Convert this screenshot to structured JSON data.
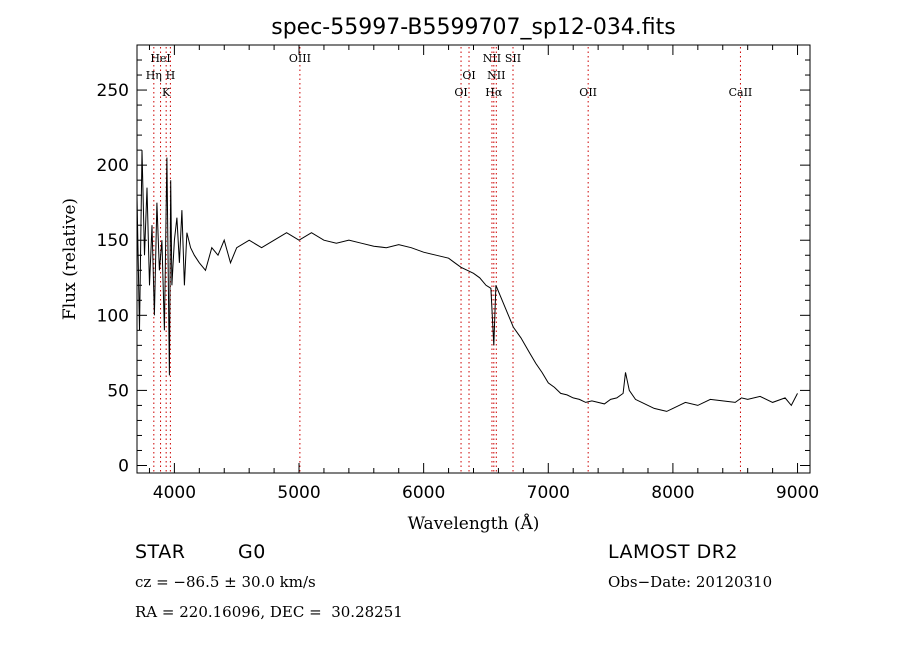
{
  "chart_data": {
    "type": "line",
    "title": "spec-55997-B5599707_sp12-034.fits",
    "xlabel": "Wavelength (Å)",
    "ylabel": "Flux (relative)",
    "xlim": [
      3700,
      9100
    ],
    "ylim": [
      -5,
      280
    ],
    "xticks": [
      4000,
      5000,
      6000,
      7000,
      8000,
      9000
    ],
    "yticks": [
      0,
      50,
      100,
      150,
      200,
      250
    ],
    "grid": false,
    "line_color": "#000000",
    "marker_color": "#cc0000",
    "series": [
      {
        "x": [
          3700,
          3720,
          3740,
          3760,
          3780,
          3800,
          3820,
          3840,
          3860,
          3880,
          3900,
          3920,
          3940,
          3960,
          3970,
          3980,
          4000,
          4020,
          4040,
          4060,
          4080,
          4100,
          4130,
          4160,
          4200,
          4250,
          4300,
          4350,
          4400,
          4450,
          4500,
          4600,
          4700,
          4800,
          4900,
          5000,
          5100,
          5200,
          5300,
          5400,
          5500,
          5600,
          5700,
          5800,
          5900,
          6000,
          6100,
          6200,
          6250,
          6300,
          6350,
          6400,
          6450,
          6500,
          6540,
          6563,
          6580,
          6620,
          6680,
          6720,
          6780,
          6850,
          6900,
          6950,
          7000,
          7050,
          7100,
          7150,
          7200,
          7250,
          7300,
          7350,
          7400,
          7450,
          7500,
          7550,
          7600,
          7620,
          7650,
          7700,
          7750,
          7800,
          7850,
          7900,
          7950,
          8000,
          8050,
          8100,
          8200,
          8300,
          8400,
          8500,
          8550,
          8600,
          8700,
          8800,
          8900,
          8950,
          9000
        ],
        "y": [
          180,
          90,
          210,
          140,
          185,
          120,
          160,
          100,
          175,
          130,
          150,
          90,
          205,
          60,
          190,
          120,
          150,
          165,
          135,
          170,
          120,
          155,
          145,
          140,
          135,
          130,
          145,
          140,
          150,
          135,
          145,
          150,
          145,
          150,
          155,
          150,
          155,
          150,
          148,
          150,
          148,
          146,
          145,
          147,
          145,
          142,
          140,
          138,
          135,
          132,
          130,
          128,
          125,
          120,
          118,
          80,
          120,
          112,
          100,
          92,
          85,
          75,
          68,
          62,
          55,
          52,
          48,
          47,
          45,
          44,
          42,
          43,
          42,
          41,
          44,
          45,
          48,
          62,
          50,
          44,
          42,
          40,
          38,
          37,
          36,
          38,
          40,
          42,
          40,
          44,
          43,
          42,
          45,
          44,
          46,
          42,
          45,
          40,
          48
        ]
      }
    ],
    "line_markers": [
      {
        "label": "HeI",
        "x": 3889,
        "row": 1
      },
      {
        "label": "Hη",
        "x": 3835,
        "row": 2
      },
      {
        "label": "H",
        "x": 3968,
        "row": 2
      },
      {
        "label": "K",
        "x": 3934,
        "row": 3
      },
      {
        "label": "OIII",
        "x": 5007,
        "row": 1
      },
      {
        "label": "NII",
        "x": 6548,
        "row": 1
      },
      {
        "label": "SII",
        "x": 6717,
        "row": 1
      },
      {
        "label": "OI",
        "x": 6364,
        "row": 2
      },
      {
        "label": "NII",
        "x": 6583,
        "row": 2
      },
      {
        "label": "OI",
        "x": 6300,
        "row": 3
      },
      {
        "label": "Hα",
        "x": 6563,
        "row": 3
      },
      {
        "label": "OII",
        "x": 7320,
        "row": 3
      },
      {
        "label": "CaII",
        "x": 8542,
        "row": 3
      }
    ]
  },
  "footer": {
    "class_label": "STAR",
    "subclass_label": "G0",
    "survey": "LAMOST DR2",
    "cz": "cz = −86.5 ± 30.0 km/s",
    "obs_date": "Obs−Date: 20120310",
    "radec": "RA = 220.16096, DEC =  30.28251"
  }
}
